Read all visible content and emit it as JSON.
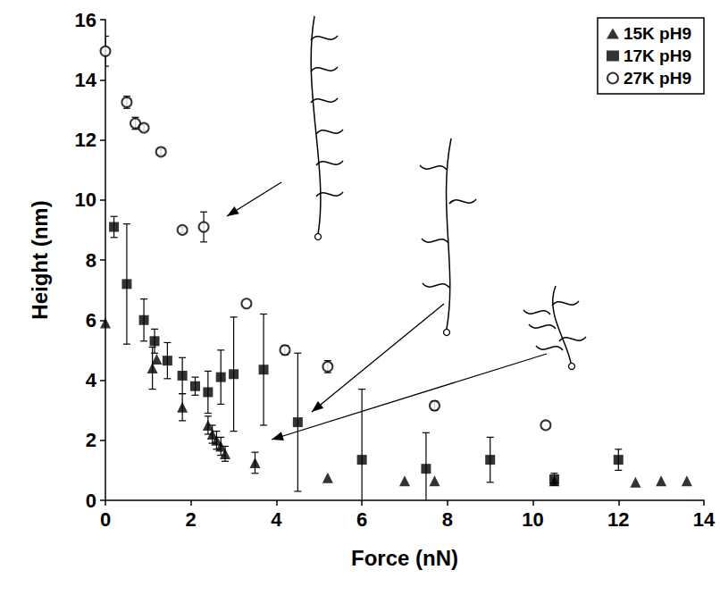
{
  "chart_data": {
    "type": "scatter",
    "x_label": "Force (nN)",
    "y_label": "Height (nm)",
    "xlim": [
      0,
      14
    ],
    "xticks": [
      0,
      2,
      4,
      6,
      8,
      10,
      12,
      14
    ],
    "ylim": [
      0,
      16
    ],
    "yticks": [
      0,
      2,
      4,
      6,
      8,
      10,
      12,
      14,
      16
    ],
    "grid": false,
    "legend": "top-right",
    "series": [
      {
        "name": "15K pH9",
        "color": "#000000",
        "marker": "triangle",
        "x": [
          0,
          1.1,
          1.2,
          1.8,
          2.4,
          2.5,
          2.6,
          2.7,
          2.8,
          3.5,
          5.2,
          7.0,
          7.7,
          10.5,
          12.4,
          13.0,
          13.6
        ],
        "values": [
          5.9,
          4.4,
          4.7,
          3.1,
          2.5,
          2.2,
          2.0,
          1.8,
          1.55,
          1.25,
          0.75,
          0.65,
          0.65,
          0.65,
          0.6,
          0.65,
          0.65
        ],
        "errors": [
          null,
          0.7,
          null,
          0.45,
          0.3,
          0.3,
          0.3,
          0.3,
          0.25,
          0.35,
          null,
          null,
          null,
          null,
          null,
          null,
          null
        ]
      },
      {
        "name": "17K pH9",
        "color": "#000000",
        "marker": "square",
        "x": [
          0.2,
          0.5,
          0.9,
          1.15,
          1.45,
          1.8,
          2.1,
          2.4,
          2.7,
          3.0,
          3.7,
          4.5,
          6.0,
          7.5,
          9.0,
          10.5,
          12.0
        ],
        "values": [
          9.1,
          7.2,
          6.0,
          5.3,
          4.65,
          4.15,
          3.8,
          3.6,
          4.1,
          4.2,
          4.35,
          2.6,
          1.35,
          1.05,
          1.35,
          0.7,
          1.35
        ],
        "errors": [
          0.35,
          2.0,
          0.7,
          0.4,
          0.6,
          0.6,
          0.3,
          0.7,
          0.9,
          1.9,
          1.85,
          2.3,
          2.35,
          1.2,
          0.75,
          0.2,
          0.35
        ]
      },
      {
        "name": "27K pH9",
        "color": "#000000",
        "marker": "open-circle",
        "x": [
          0,
          0.5,
          0.7,
          0.9,
          1.3,
          1.8,
          2.3,
          3.3,
          4.2,
          5.2,
          7.7,
          10.3
        ],
        "values": [
          14.95,
          13.25,
          12.55,
          12.4,
          11.6,
          9.0,
          9.1,
          6.55,
          5.0,
          4.45,
          3.15,
          2.5
        ],
        "errors": [
          0.5,
          0.2,
          0.2,
          0.1,
          0.1,
          0.1,
          0.5,
          null,
          0.15,
          0.2,
          0.15,
          null
        ]
      }
    ]
  }
}
